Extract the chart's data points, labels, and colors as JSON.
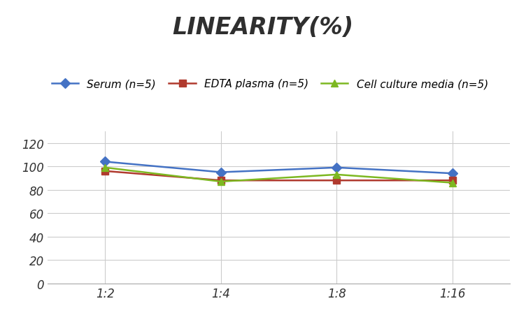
{
  "title": "LINEARITY(%)",
  "title_fontsize": 24,
  "title_fontstyle": "italic",
  "title_fontweight": "bold",
  "x_labels": [
    "1:2",
    "1:4",
    "1:8",
    "1:16"
  ],
  "x_values": [
    0,
    1,
    2,
    3
  ],
  "series": [
    {
      "label": "Serum (n=5)",
      "values": [
        104,
        95,
        99,
        94
      ],
      "color": "#4472C4",
      "marker": "D",
      "markersize": 7,
      "linewidth": 1.8
    },
    {
      "label": "EDTA plasma (n=5)",
      "values": [
        96,
        88,
        88,
        88
      ],
      "color": "#B03A2E",
      "marker": "s",
      "markersize": 7,
      "linewidth": 1.8
    },
    {
      "label": "Cell culture media (n=5)",
      "values": [
        99,
        87,
        93,
        86
      ],
      "color": "#7DB821",
      "marker": "^",
      "markersize": 7,
      "linewidth": 1.8
    }
  ],
  "ylim": [
    0,
    130
  ],
  "yticks": [
    0,
    20,
    40,
    60,
    80,
    100,
    120
  ],
  "grid_color": "#CCCCCC",
  "background_color": "#FFFFFF",
  "legend_fontsize": 11,
  "tick_fontsize": 12
}
